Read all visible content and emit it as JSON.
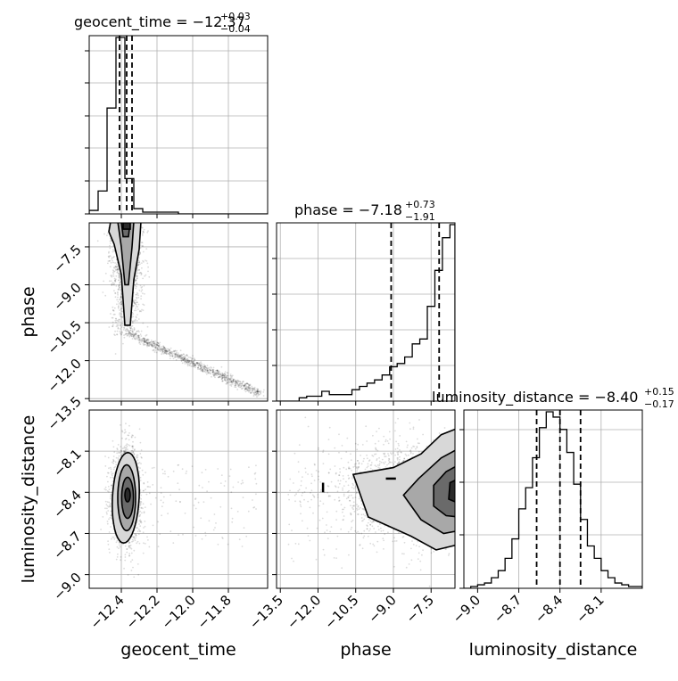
{
  "figure": {
    "type": "corner-plot",
    "parameters": [
      "geocent_time",
      "phase",
      "luminosity_distance"
    ]
  },
  "chart_data": [
    {
      "type": "histogram",
      "parameter": "geocent_time",
      "title": {
        "prefix": "geocent_time = ",
        "value": "−12.37",
        "upper": "+0.03",
        "lower": "−0.04"
      },
      "xlim": [
        -12.58,
        -11.58
      ],
      "bin_edges": [
        -12.58,
        -12.53,
        -12.48,
        -12.43,
        -12.38,
        -12.33,
        -12.28,
        -12.23,
        -12.18,
        -12.13,
        -12.08,
        -12.03,
        -11.98,
        -11.93,
        -11.88,
        -11.83,
        -11.78,
        -11.73,
        -11.68,
        -11.63,
        -11.58
      ],
      "counts": [
        2,
        13,
        60,
        100,
        20,
        3,
        1,
        1,
        1,
        1,
        0,
        0,
        0,
        0,
        0,
        0,
        0,
        0,
        0,
        0
      ],
      "quantiles": [
        -12.41,
        -12.37,
        -12.34
      ]
    },
    {
      "type": "histogram",
      "parameter": "phase",
      "title": {
        "prefix": "phase = ",
        "value": "−7.18",
        "upper": "+0.73",
        "lower": "−1.91"
      },
      "xlim": [
        -13.65,
        -6.55
      ],
      "bin_edges": [
        -13.65,
        -13.35,
        -13.05,
        -12.75,
        -12.45,
        -12.15,
        -11.85,
        -11.55,
        -11.25,
        -10.95,
        -10.65,
        -10.35,
        -10.05,
        -9.75,
        -9.45,
        -9.15,
        -8.85,
        -8.55,
        -8.25,
        -7.95,
        -7.65,
        -7.35,
        -7.05,
        -6.75,
        -6.55
      ],
      "counts": [
        0,
        0,
        0,
        2,
        3,
        3,
        6,
        4,
        4,
        4,
        7,
        9,
        11,
        13,
        16,
        21,
        23,
        27,
        35,
        38,
        58,
        80,
        100,
        108
      ],
      "quantiles": [
        -9.09,
        -7.18,
        -6.45
      ]
    },
    {
      "type": "histogram",
      "parameter": "luminosity_distance",
      "title": {
        "prefix": "luminosity_distance = ",
        "value": "−8.40",
        "upper": "+0.15",
        "lower": "−0.17"
      },
      "xlim": [
        -9.1,
        -7.8
      ],
      "bin_edges": [
        -9.1,
        -9.05,
        -9.0,
        -8.95,
        -8.9,
        -8.85,
        -8.8,
        -8.75,
        -8.7,
        -8.65,
        -8.6,
        -8.55,
        -8.5,
        -8.45,
        -8.4,
        -8.35,
        -8.3,
        -8.25,
        -8.2,
        -8.15,
        -8.1,
        -8.05,
        -8.0,
        -7.95,
        -7.9,
        -7.85,
        -7.8
      ],
      "counts": [
        0,
        1,
        2,
        3,
        6,
        10,
        17,
        28,
        45,
        57,
        74,
        91,
        100,
        97,
        90,
        77,
        59,
        39,
        24,
        17,
        10,
        6,
        3,
        2,
        1,
        1
      ],
      "quantiles": [
        -8.57,
        -8.4,
        -8.25
      ]
    },
    {
      "type": "scatter",
      "x_parameter": "geocent_time",
      "y_parameter": "phase",
      "xlim": [
        -12.58,
        -11.58
      ],
      "ylim": [
        -13.6,
        -6.55
      ],
      "contour_peak": {
        "x": -12.37,
        "y": -6.75
      }
    },
    {
      "type": "scatter",
      "x_parameter": "geocent_time",
      "y_parameter": "luminosity_distance",
      "xlim": [
        -12.58,
        -11.58
      ],
      "ylim": [
        -9.1,
        -7.8
      ],
      "contour_peak": {
        "x": -12.37,
        "y": -8.4
      }
    },
    {
      "type": "scatter",
      "x_parameter": "phase",
      "y_parameter": "luminosity_distance",
      "xlim": [
        -13.65,
        -6.55
      ],
      "ylim": [
        -9.1,
        -7.8
      ],
      "contour_peak": {
        "x": -6.75,
        "y": -8.4
      }
    }
  ],
  "axes": {
    "geocent_time_ticks": [
      "−12.4",
      "−12.2",
      "−12.0",
      "−11.8"
    ],
    "geocent_time_tick_values": [
      -12.4,
      -12.2,
      -12.0,
      -11.8
    ],
    "phase_ticks": [
      "−13.5",
      "−12.0",
      "−10.5",
      "−9.0",
      "−7.5"
    ],
    "phase_tick_values": [
      -13.5,
      -12.0,
      -10.5,
      -9.0,
      -7.5
    ],
    "luminosity_distance_ticks": [
      "−9.0",
      "−8.7",
      "−8.4",
      "−8.1"
    ],
    "luminosity_distance_tick_values": [
      -9.0,
      -8.7,
      -8.4,
      -8.1
    ],
    "luminosity_distance_diag_ticks": [
      "−9.0",
      "−8.7",
      "−8.4",
      "−8.1"
    ],
    "xlabels": [
      "geocent_time",
      "phase",
      "luminosity_distance"
    ],
    "ylabels": [
      "phase",
      "luminosity_distance"
    ]
  },
  "style": {
    "line_color": "#000000",
    "grid_color": "#b0b0b0",
    "point_color": "#000000",
    "contour_fills": [
      "#d8d8d8",
      "#a8a8a8",
      "#6a6a6a",
      "#2a2a2a"
    ]
  }
}
